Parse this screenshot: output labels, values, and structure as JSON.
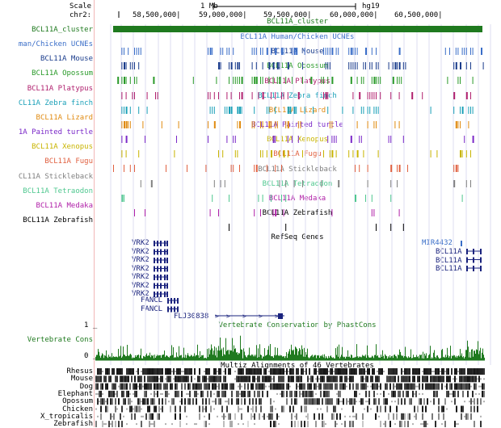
{
  "header": {
    "scale_label": "Scale",
    "chrom_label": "chr2:",
    "scale_bar_text": "1 Mb",
    "assembly": "hg19",
    "positions": [
      "58,500,000|",
      "59,000,000|",
      "59,500,000|",
      "60,000,000|",
      "60,500,000|"
    ]
  },
  "tracks": [
    {
      "id": "cluster",
      "label": "BCL11A_cluster",
      "title": "BCL11A_cluster",
      "color": "#1f7a1f"
    },
    {
      "id": "human",
      "label": "man/Chicken UCNEs",
      "title": "BCL11A Human/Chicken UCNEs",
      "color": "#3a6ec8"
    },
    {
      "id": "mouse",
      "label": "BCL11A Mouse",
      "title": "BCL11A Mouse",
      "color": "#1a3c8c"
    },
    {
      "id": "opossum",
      "label": "BCL11A Opossum",
      "title": "BCL11A Opossum",
      "color": "#2a9a2a"
    },
    {
      "id": "platypus",
      "label": "BCL11A Platypus",
      "title": "BCL11A Platypus",
      "color": "#b0206e"
    },
    {
      "id": "zebrafinch",
      "label": "CL11A Zebra finch",
      "title": "BCL11A Zebra finch",
      "color": "#1aa0b8"
    },
    {
      "id": "lizard",
      "label": "BCL11A Lizard",
      "title": "BCL11A Lizard",
      "color": "#e08a10"
    },
    {
      "id": "turtle",
      "label": "1A Painted turtle",
      "title": "BCL11A Painted turtle",
      "color": "#7a28c8"
    },
    {
      "id": "xenopus",
      "label": "BCL11A Xenopus",
      "title": "BCL11A Xenopus",
      "color": "#c8b400"
    },
    {
      "id": "fugu",
      "label": "BCL11A Fugu",
      "title": "BCL11A Fugu",
      "color": "#e06040"
    },
    {
      "id": "stickleback",
      "label": "CL11A Stickleback",
      "title": "BCL11A Stickleback",
      "color": "#808080"
    },
    {
      "id": "tetraodon",
      "label": "BCL11A Tetraodon",
      "title": "BCL11A Tetraodon",
      "color": "#50c890"
    },
    {
      "id": "medaka",
      "label": "BCL11A Medaka",
      "title": "BCL11A Medaka",
      "color": "#b020a8"
    },
    {
      "id": "zebrafish",
      "label": "BCL11A Zebrafish",
      "title": "BCL11A Zebrafish",
      "color": "#000000"
    }
  ],
  "refseq": {
    "title": "RefSeq Genes",
    "color": "#1a237e",
    "genes": [
      "VRK2",
      "VRK2",
      "VRK2",
      "VRK2",
      "VRK2",
      "VRK2",
      "VRK2"
    ],
    "fancl": [
      "FANCL",
      "FANCL"
    ],
    "flj": "FLJ30838",
    "mir": "MIR4432",
    "bcl": [
      "BCL11A",
      "BCL11A",
      "BCL11A"
    ]
  },
  "conservation": {
    "label": "Vertebrate Cons",
    "title": "Vertebrate Conservation by PhastCons",
    "scale_top": "1 _",
    "scale_bottom": "0 _",
    "color": "#1f7a1f"
  },
  "multiz": {
    "title": "Multiz Alignments of 46 Vertebrates",
    "species": [
      "Rhesus",
      "Mouse",
      "Dog",
      "Elephant",
      "Opossum",
      "Chicken",
      "X_tropicalis",
      "Zebrafish"
    ]
  }
}
